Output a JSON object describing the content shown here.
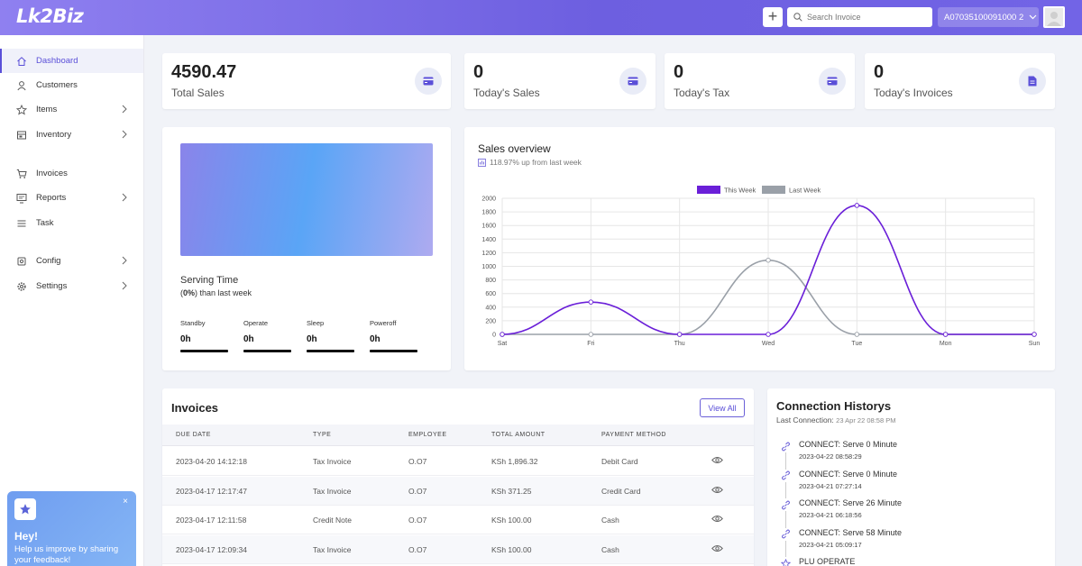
{
  "header": {
    "logo": "Lk2Biz",
    "add_label": "+",
    "search_placeholder": "Search Invoice",
    "account_id": "A07035100091000 2"
  },
  "sidebar": {
    "items": [
      {
        "label": "Dashboard",
        "icon": "home-icon",
        "active": true,
        "has_arrow": false
      },
      {
        "label": "Customers",
        "icon": "user-icon",
        "has_arrow": false
      },
      {
        "label": "Items",
        "icon": "star-icon",
        "has_arrow": true
      },
      {
        "label": "Inventory",
        "icon": "inventory-icon",
        "has_arrow": true
      },
      {
        "label": "Invoices",
        "icon": "cart-icon",
        "has_arrow": false
      },
      {
        "label": "Reports",
        "icon": "reports-icon",
        "has_arrow": true
      },
      {
        "label": "Task",
        "icon": "list-icon",
        "has_arrow": false
      },
      {
        "label": "Config",
        "icon": "config-icon",
        "has_arrow": true
      },
      {
        "label": "Settings",
        "icon": "gear-icon",
        "has_arrow": true
      }
    ]
  },
  "feedback": {
    "title": "Hey!",
    "message": "Help us improve by sharing your feedback!",
    "close": "×"
  },
  "stats": [
    {
      "value": "4590.47",
      "label": "Total Sales",
      "icon": "card-icon"
    },
    {
      "value": "0",
      "label": "Today's Sales",
      "icon": "card-icon"
    },
    {
      "value": "0",
      "label": "Today's Tax",
      "icon": "card-icon"
    },
    {
      "value": "0",
      "label": "Today's Invoices",
      "icon": "document-icon"
    }
  ],
  "serving": {
    "title": "Serving Time",
    "percent": "0%",
    "suffix": " than last week",
    "modes": [
      {
        "label": "Standby",
        "value": "0h"
      },
      {
        "label": "Operate",
        "value": "0h"
      },
      {
        "label": "Sleep",
        "value": "0h"
      },
      {
        "label": "Poweroff",
        "value": "0h"
      }
    ]
  },
  "sales_overview": {
    "title": "Sales overview",
    "subtitle": "118.97% up from last week"
  },
  "chart_data": {
    "type": "line",
    "categories": [
      "Sat",
      "Fri",
      "Thu",
      "Wed",
      "Tue",
      "Mon",
      "Sun"
    ],
    "series": [
      {
        "name": "This Week",
        "values": [
          0,
          475,
          0,
          0,
          1895,
          0,
          0
        ],
        "color": "#6a1fd8"
      },
      {
        "name": "Last Week",
        "values": [
          0,
          0,
          0,
          1090,
          0,
          0,
          0
        ],
        "color": "#9aa0a8"
      }
    ],
    "ylim": [
      0,
      2000
    ],
    "yticks": [
      0,
      200,
      400,
      600,
      800,
      1000,
      1200,
      1400,
      1600,
      1800,
      2000
    ],
    "legend": "top-center",
    "grid": true
  },
  "invoices": {
    "title": "Invoices",
    "view_all": "View All",
    "columns": [
      "DUE DATE",
      "TYPE",
      "EMPLOYEE",
      "TOTAL AMOUNT",
      "PAYMENT METHOD"
    ],
    "rows": [
      {
        "due": "2023-04-20 14:12:18",
        "type": "Tax Invoice",
        "employee": "O.O7",
        "amount": "KSh 1,896.32",
        "method": "Debit Card"
      },
      {
        "due": "2023-04-17 12:17:47",
        "type": "Tax Invoice",
        "employee": "O.O7",
        "amount": "KSh 371.25",
        "method": "Credit Card"
      },
      {
        "due": "2023-04-17 12:11:58",
        "type": "Credit Note",
        "employee": "O.O7",
        "amount": "KSh 100.00",
        "method": "Cash"
      },
      {
        "due": "2023-04-17 12:09:34",
        "type": "Tax Invoice",
        "employee": "O.O7",
        "amount": "KSh 100.00",
        "method": "Cash"
      }
    ]
  },
  "connections": {
    "title": "Connection Historys",
    "last_label": "Last Connection: ",
    "last_value": "23 Apr 22 08:58 PM",
    "items": [
      {
        "text": "CONNECT: Serve 0 Minute",
        "time": "2023-04-22 08:58:29",
        "icon": "link-icon"
      },
      {
        "text": "CONNECT: Serve 0 Minute",
        "time": "2023-04-21 07:27:14",
        "icon": "link-icon"
      },
      {
        "text": "CONNECT: Serve 26 Minute",
        "time": "2023-04-21 06:18:56",
        "icon": "link-icon"
      },
      {
        "text": "CONNECT: Serve 58 Minute",
        "time": "2023-04-21 05:09:17",
        "icon": "link-icon"
      },
      {
        "text": "PLU OPERATE",
        "time": "",
        "icon": "star-icon"
      }
    ]
  }
}
